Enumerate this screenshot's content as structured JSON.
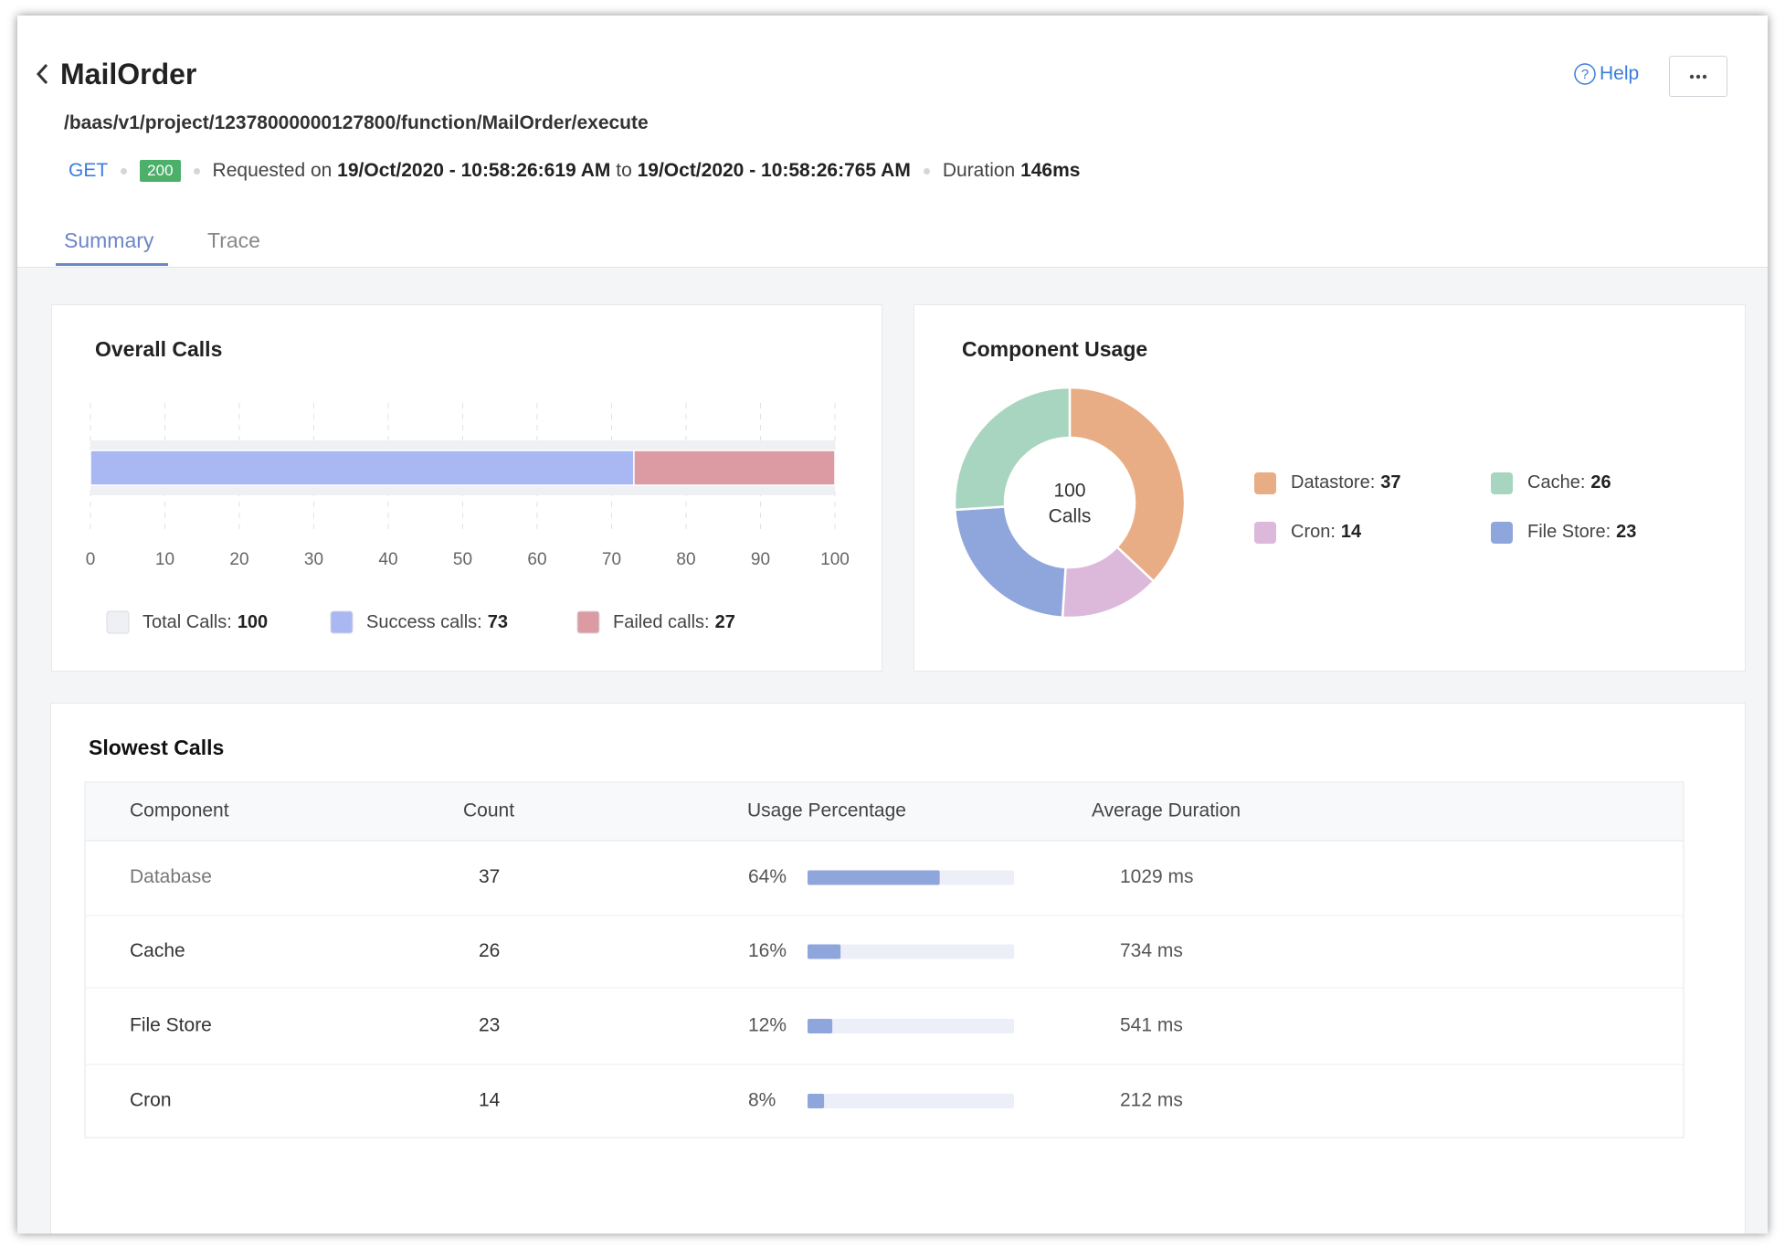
{
  "header": {
    "title": "MailOrder",
    "path": "/baas/v1/project/12378000000127800/function/MailOrder/execute",
    "method": "GET",
    "status": "200",
    "requested_on": "Requested on",
    "start": "19/Oct/2020 - 10:58:26:619 AM",
    "to": "to",
    "end": "19/Oct/2020 - 10:58:26:765 AM",
    "duration_label": "Duration",
    "duration": "146ms",
    "help": "Help"
  },
  "tabs": [
    "Summary",
    "Trace"
  ],
  "overall_calls": {
    "type": "bar",
    "orientation": "horizontal",
    "stacked": true,
    "title": "Overall Calls",
    "total": {
      "name": "Total Calls:",
      "color": "#eef0f3",
      "value": 100
    },
    "series": [
      {
        "name": "Success calls:",
        "color": "#a9b8f2",
        "values": [
          73
        ]
      },
      {
        "name": "Failed calls:",
        "color": "#dc9aa2",
        "values": [
          27
        ]
      }
    ],
    "xlim": [
      0,
      100
    ],
    "xticks": [
      0,
      10,
      20,
      30,
      40,
      50,
      60,
      70,
      80,
      90,
      100
    ],
    "grid": true
  },
  "component_usage": {
    "type": "pie",
    "donut": true,
    "title": "Component Usage",
    "center_value": 100,
    "center_label": "Calls",
    "categories": [
      "Datastore:",
      "Cron:",
      "File Store:",
      "Cache:"
    ],
    "values": [
      37,
      14,
      23,
      26
    ],
    "colors": [
      "#e8ad85",
      "#dcb8db",
      "#8fa6dc",
      "#a8d5c0"
    ]
  },
  "slowest_calls": {
    "title": "Slowest Calls",
    "columns": [
      "Component",
      "Count",
      "Usage Percentage",
      "Average Duration"
    ],
    "bar_color": "#8fa6dc",
    "rows": [
      {
        "component": "Database",
        "count": 37,
        "usage": 64,
        "usage_label": "64%",
        "duration": "1029 ms"
      },
      {
        "component": "Cache",
        "count": 26,
        "usage": 16,
        "usage_label": "16%",
        "duration": "734 ms"
      },
      {
        "component": "File Store",
        "count": 23,
        "usage": 12,
        "usage_label": "12%",
        "duration": "541 ms"
      },
      {
        "component": "Cron",
        "count": 14,
        "usage": 8,
        "usage_label": "8%",
        "duration": "212 ms"
      }
    ]
  }
}
